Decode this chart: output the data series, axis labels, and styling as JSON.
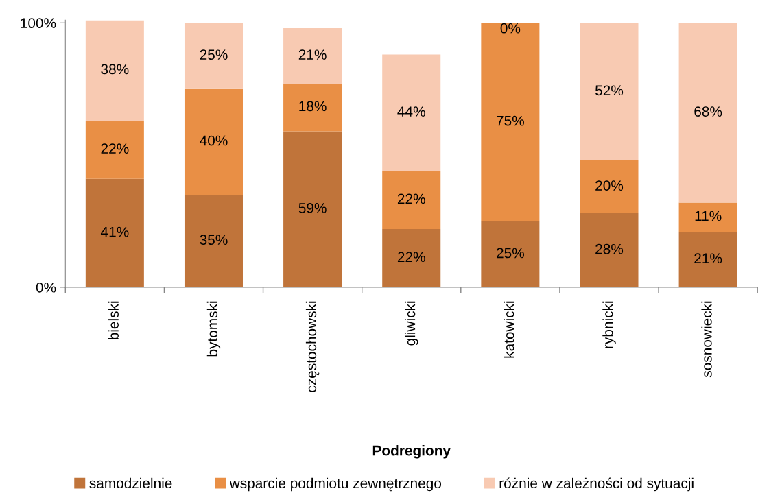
{
  "chart_data": {
    "type": "bar",
    "stacked": true,
    "xlabel": "Podregiony",
    "categories": [
      "bielski",
      "bytomski",
      "częstochowski",
      "gliwicki",
      "katowicki",
      "rybnicki",
      "sosnowiecki"
    ],
    "series": [
      {
        "name": "samodzielnie",
        "color": "#c0743a",
        "values": [
          41,
          35,
          59,
          22,
          25,
          28,
          21
        ],
        "value_labels": [
          "41%",
          "35%",
          "59%",
          "22%",
          "25%",
          "28%",
          "21%"
        ]
      },
      {
        "name": "wsparcie podmiotu zewnętrznego",
        "color": "#e98f45",
        "values": [
          22,
          40,
          18,
          22,
          75,
          20,
          11
        ],
        "value_labels": [
          "22%",
          "40%",
          "18%",
          "22%",
          "75%",
          "20%",
          "11%"
        ]
      },
      {
        "name": "różnie w zależności od sytuacji",
        "color": "#f8cab2",
        "values": [
          38,
          25,
          21,
          44,
          0,
          52,
          68
        ],
        "value_labels": [
          "38%",
          "25%",
          "21%",
          "44%",
          "0%",
          "52%",
          "68%"
        ]
      }
    ],
    "ylim": [
      0,
      101
    ],
    "yticks": [
      {
        "value": 0,
        "label": "0%"
      },
      {
        "value": 100,
        "label": "100%"
      }
    ],
    "grid": false,
    "legend": "bottom"
  }
}
